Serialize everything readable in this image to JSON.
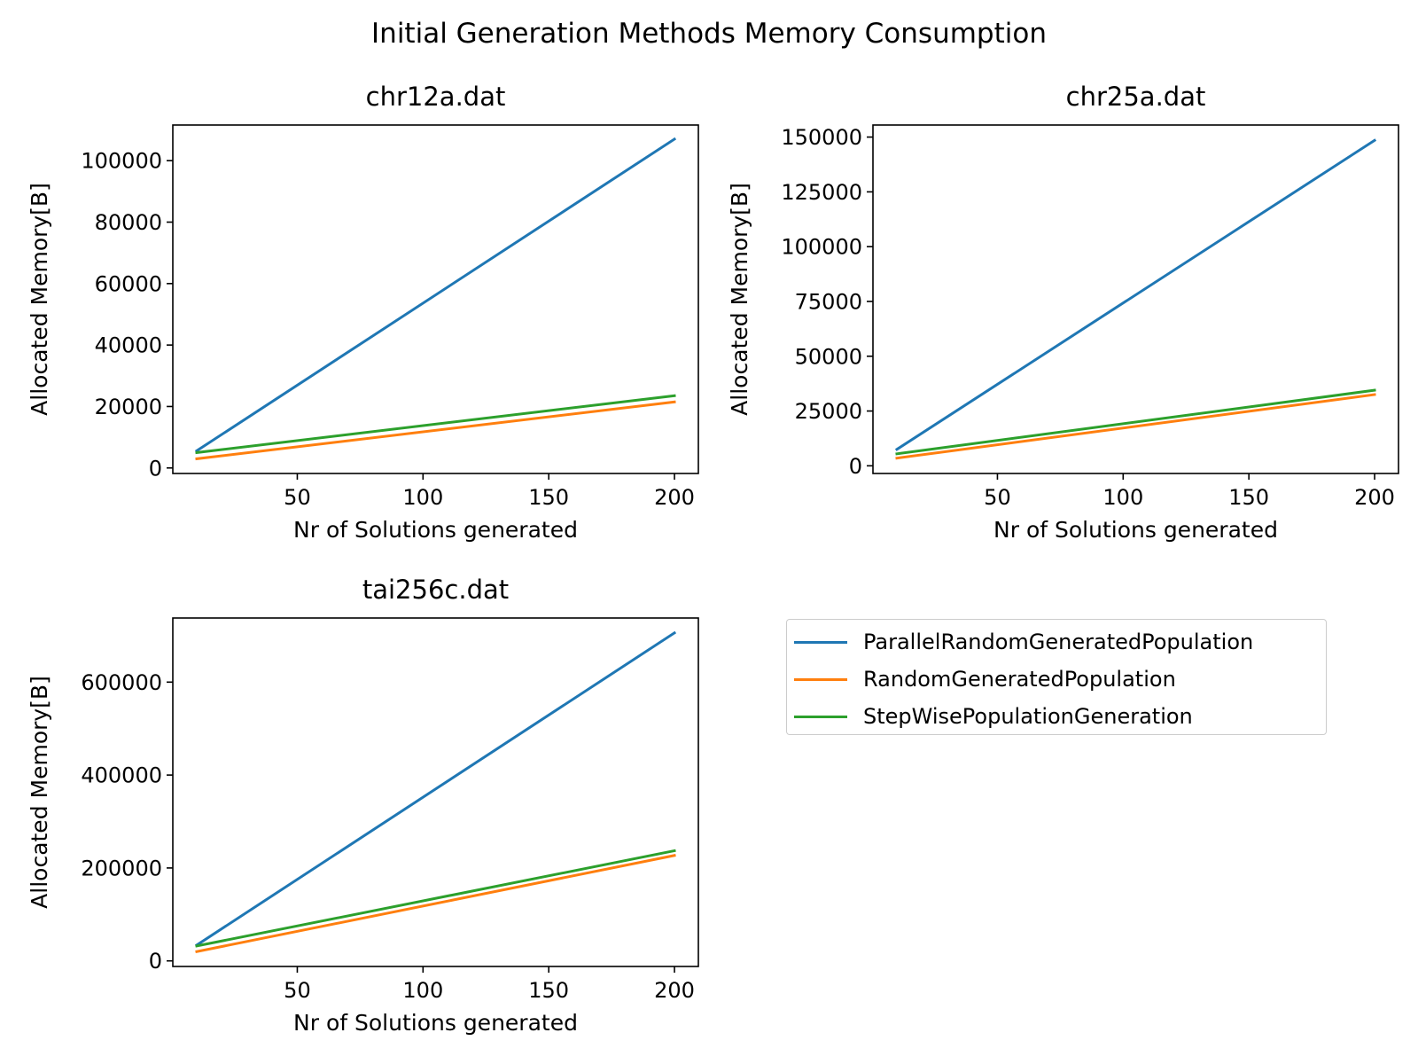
{
  "figure": {
    "title": "Initial Generation Methods Memory Consumption"
  },
  "colors": {
    "ParallelRandomGeneratedPopulation": "#1f77b4",
    "RandomGeneratedPopulation": "#ff7f0e",
    "StepWisePopulationGeneration": "#2ca02c"
  },
  "legend": {
    "placement": "lower-right empty panel",
    "entries": [
      {
        "label": "ParallelRandomGeneratedPopulation",
        "color": "#1f77b4"
      },
      {
        "label": "RandomGeneratedPopulation",
        "color": "#ff7f0e"
      },
      {
        "label": "StepWisePopulationGeneration",
        "color": "#2ca02c"
      }
    ]
  },
  "chart_data": [
    {
      "type": "line",
      "title": "chr12a.dat",
      "xlabel": "Nr of Solutions generated",
      "ylabel": "Allocated Memory[B]",
      "xlim": [
        0.5,
        209.5
      ],
      "ylim": [
        -1800,
        111600
      ],
      "xticks": [
        50,
        100,
        150,
        200
      ],
      "yticks": [
        0,
        20000,
        40000,
        60000,
        80000,
        100000
      ],
      "ytick_labels": [
        "0",
        "20000",
        "40000",
        "60000",
        "80000",
        "100000"
      ],
      "grid": false,
      "x": [
        10,
        200
      ],
      "series": [
        {
          "name": "ParallelRandomGeneratedPopulation",
          "values": [
            5600,
            107000
          ]
        },
        {
          "name": "RandomGeneratedPopulation",
          "values": [
            3000,
            21500
          ]
        },
        {
          "name": "StepWisePopulationGeneration",
          "values": [
            5000,
            23500
          ]
        }
      ]
    },
    {
      "type": "line",
      "title": "chr25a.dat",
      "xlabel": "Nr of Solutions generated",
      "ylabel": "Allocated Memory[B]",
      "xlim": [
        0.5,
        209.5
      ],
      "ylim": [
        -3500,
        155500
      ],
      "xticks": [
        50,
        100,
        150,
        200
      ],
      "yticks": [
        0,
        25000,
        50000,
        75000,
        100000,
        125000,
        150000
      ],
      "ytick_labels": [
        "0",
        "25000",
        "50000",
        "75000",
        "100000",
        "125000",
        "150000"
      ],
      "grid": false,
      "x": [
        10,
        200
      ],
      "series": [
        {
          "name": "ParallelRandomGeneratedPopulation",
          "values": [
            7500,
            148500
          ]
        },
        {
          "name": "RandomGeneratedPopulation",
          "values": [
            3500,
            32500
          ]
        },
        {
          "name": "StepWisePopulationGeneration",
          "values": [
            5500,
            34500
          ]
        }
      ]
    },
    {
      "type": "line",
      "title": "tai256c.dat",
      "xlabel": "Nr of Solutions generated",
      "ylabel": "Allocated Memory[B]",
      "xlim": [
        0.5,
        209.5
      ],
      "ylim": [
        -12000,
        738000
      ],
      "xticks": [
        50,
        100,
        150,
        200
      ],
      "yticks": [
        0,
        200000,
        400000,
        600000
      ],
      "ytick_labels": [
        "0",
        "200000",
        "400000",
        "600000"
      ],
      "grid": false,
      "x": [
        10,
        200
      ],
      "series": [
        {
          "name": "ParallelRandomGeneratedPopulation",
          "values": [
            34000,
            706000
          ]
        },
        {
          "name": "RandomGeneratedPopulation",
          "values": [
            20000,
            227000
          ]
        },
        {
          "name": "StepWisePopulationGeneration",
          "values": [
            32000,
            237000
          ]
        }
      ]
    }
  ]
}
